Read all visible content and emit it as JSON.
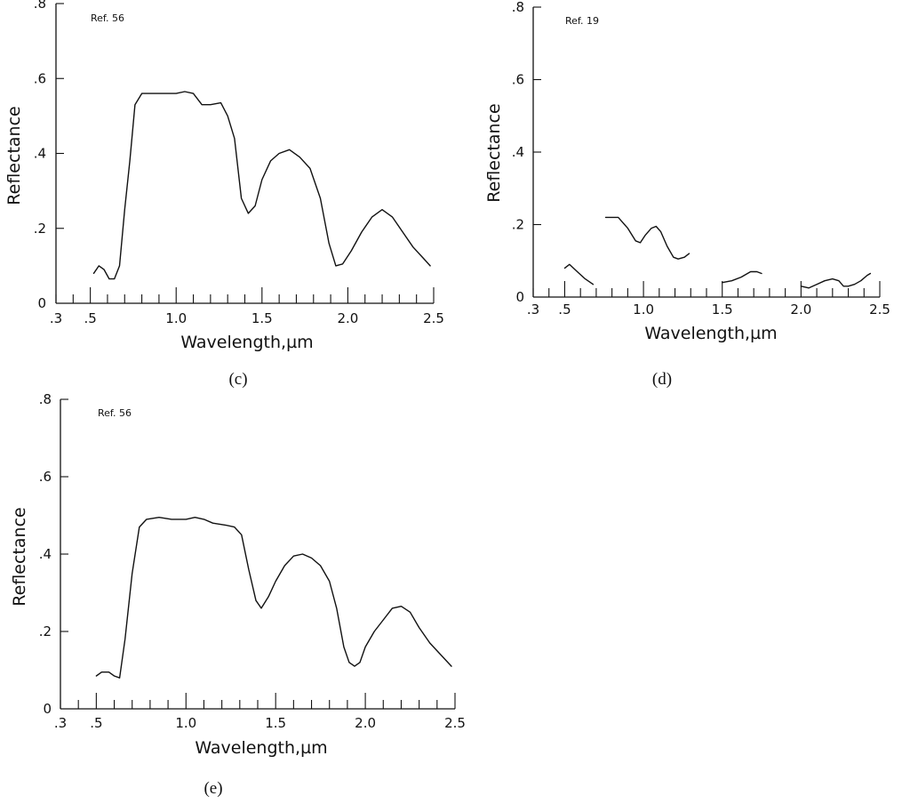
{
  "chart_data": [
    {
      "type": "line",
      "panel_label": "(c)",
      "annotation": "Ref. 56",
      "xlabel": "Wavelength,µm",
      "ylabel": "Reflectance",
      "xlim": [
        0.3,
        2.5
      ],
      "ylim": [
        0,
        0.8
      ],
      "x_ticks": [
        ".3",
        ".5",
        "1.0",
        "1.5",
        "2.0",
        "2.5"
      ],
      "y_ticks": [
        "0",
        ".2",
        ".4",
        ".6",
        ".8"
      ],
      "series": [
        {
          "segments": [
            [
              [
                0.52,
                0.08
              ],
              [
                0.55,
                0.1
              ],
              [
                0.58,
                0.09
              ],
              [
                0.61,
                0.065
              ],
              [
                0.64,
                0.065
              ],
              [
                0.67,
                0.1
              ],
              [
                0.7,
                0.25
              ],
              [
                0.73,
                0.38
              ],
              [
                0.76,
                0.53
              ],
              [
                0.8,
                0.56
              ],
              [
                0.9,
                0.56
              ],
              [
                1.0,
                0.56
              ],
              [
                1.05,
                0.565
              ],
              [
                1.1,
                0.56
              ],
              [
                1.15,
                0.53
              ],
              [
                1.2,
                0.53
              ],
              [
                1.26,
                0.535
              ],
              [
                1.3,
                0.5
              ],
              [
                1.34,
                0.44
              ],
              [
                1.38,
                0.28
              ],
              [
                1.42,
                0.24
              ],
              [
                1.46,
                0.26
              ],
              [
                1.5,
                0.33
              ],
              [
                1.55,
                0.38
              ],
              [
                1.6,
                0.4
              ],
              [
                1.66,
                0.41
              ],
              [
                1.72,
                0.39
              ],
              [
                1.78,
                0.36
              ],
              [
                1.84,
                0.28
              ],
              [
                1.89,
                0.16
              ],
              [
                1.93,
                0.1
              ],
              [
                1.97,
                0.105
              ],
              [
                2.02,
                0.14
              ],
              [
                2.08,
                0.19
              ],
              [
                2.14,
                0.23
              ],
              [
                2.2,
                0.25
              ],
              [
                2.26,
                0.23
              ],
              [
                2.32,
                0.19
              ],
              [
                2.38,
                0.15
              ],
              [
                2.44,
                0.12
              ],
              [
                2.48,
                0.1
              ]
            ]
          ]
        }
      ]
    },
    {
      "type": "line",
      "panel_label": "(d)",
      "annotation": "Ref. 19",
      "xlabel": "Wavelength,µm",
      "ylabel": "Reflectance",
      "xlim": [
        0.3,
        2.5
      ],
      "ylim": [
        0,
        0.8
      ],
      "x_ticks": [
        ".3",
        ".5",
        "1.0",
        "1.5",
        "2.0",
        "2.5"
      ],
      "y_ticks": [
        "0",
        ".2",
        ".4",
        ".6",
        ".8"
      ],
      "series": [
        {
          "segments": [
            [
              [
                0.5,
                0.08
              ],
              [
                0.53,
                0.09
              ],
              [
                0.58,
                0.07
              ],
              [
                0.63,
                0.05
              ],
              [
                0.68,
                0.035
              ]
            ],
            [
              [
                0.76,
                0.22
              ],
              [
                0.84,
                0.22
              ],
              [
                0.9,
                0.19
              ],
              [
                0.95,
                0.155
              ],
              [
                0.98,
                0.15
              ],
              [
                1.01,
                0.17
              ],
              [
                1.05,
                0.19
              ],
              [
                1.08,
                0.195
              ],
              [
                1.11,
                0.18
              ],
              [
                1.15,
                0.14
              ],
              [
                1.19,
                0.11
              ],
              [
                1.22,
                0.105
              ],
              [
                1.26,
                0.11
              ],
              [
                1.29,
                0.12
              ]
            ],
            [
              [
                1.5,
                0.04
              ],
              [
                1.56,
                0.045
              ],
              [
                1.62,
                0.055
              ],
              [
                1.68,
                0.07
              ],
              [
                1.72,
                0.07
              ],
              [
                1.75,
                0.065
              ]
            ],
            [
              [
                2.0,
                0.03
              ],
              [
                2.05,
                0.025
              ],
              [
                2.1,
                0.035
              ],
              [
                2.15,
                0.045
              ],
              [
                2.2,
                0.05
              ],
              [
                2.24,
                0.045
              ],
              [
                2.27,
                0.03
              ],
              [
                2.3,
                0.03
              ],
              [
                2.34,
                0.035
              ],
              [
                2.38,
                0.045
              ],
              [
                2.42,
                0.06
              ],
              [
                2.44,
                0.065
              ]
            ]
          ]
        }
      ]
    },
    {
      "type": "line",
      "panel_label": "(e)",
      "annotation": "Ref. 56",
      "xlabel": "Wavelength,µm",
      "ylabel": "Reflectance",
      "xlim": [
        0.3,
        2.5
      ],
      "ylim": [
        0,
        0.8
      ],
      "x_ticks": [
        ".3",
        ".5",
        "1.0",
        "1.5",
        "2.0",
        "2.5"
      ],
      "y_ticks": [
        "0",
        ".2",
        ".4",
        ".6",
        ".8"
      ],
      "series": [
        {
          "segments": [
            [
              [
                0.5,
                0.085
              ],
              [
                0.53,
                0.095
              ],
              [
                0.57,
                0.095
              ],
              [
                0.6,
                0.085
              ],
              [
                0.63,
                0.08
              ],
              [
                0.66,
                0.18
              ],
              [
                0.7,
                0.35
              ],
              [
                0.74,
                0.47
              ],
              [
                0.78,
                0.49
              ],
              [
                0.85,
                0.495
              ],
              [
                0.92,
                0.49
              ],
              [
                1.0,
                0.49
              ],
              [
                1.05,
                0.495
              ],
              [
                1.1,
                0.49
              ],
              [
                1.15,
                0.48
              ],
              [
                1.22,
                0.475
              ],
              [
                1.27,
                0.47
              ],
              [
                1.31,
                0.45
              ],
              [
                1.35,
                0.36
              ],
              [
                1.39,
                0.28
              ],
              [
                1.42,
                0.26
              ],
              [
                1.46,
                0.29
              ],
              [
                1.5,
                0.33
              ],
              [
                1.55,
                0.37
              ],
              [
                1.6,
                0.395
              ],
              [
                1.65,
                0.4
              ],
              [
                1.7,
                0.39
              ],
              [
                1.75,
                0.37
              ],
              [
                1.8,
                0.33
              ],
              [
                1.84,
                0.26
              ],
              [
                1.88,
                0.16
              ],
              [
                1.91,
                0.12
              ],
              [
                1.94,
                0.11
              ],
              [
                1.97,
                0.12
              ],
              [
                2.0,
                0.16
              ],
              [
                2.05,
                0.2
              ],
              [
                2.1,
                0.23
              ],
              [
                2.15,
                0.26
              ],
              [
                2.2,
                0.265
              ],
              [
                2.25,
                0.25
              ],
              [
                2.3,
                0.21
              ],
              [
                2.36,
                0.17
              ],
              [
                2.42,
                0.14
              ],
              [
                2.48,
                0.11
              ]
            ]
          ]
        }
      ]
    }
  ]
}
